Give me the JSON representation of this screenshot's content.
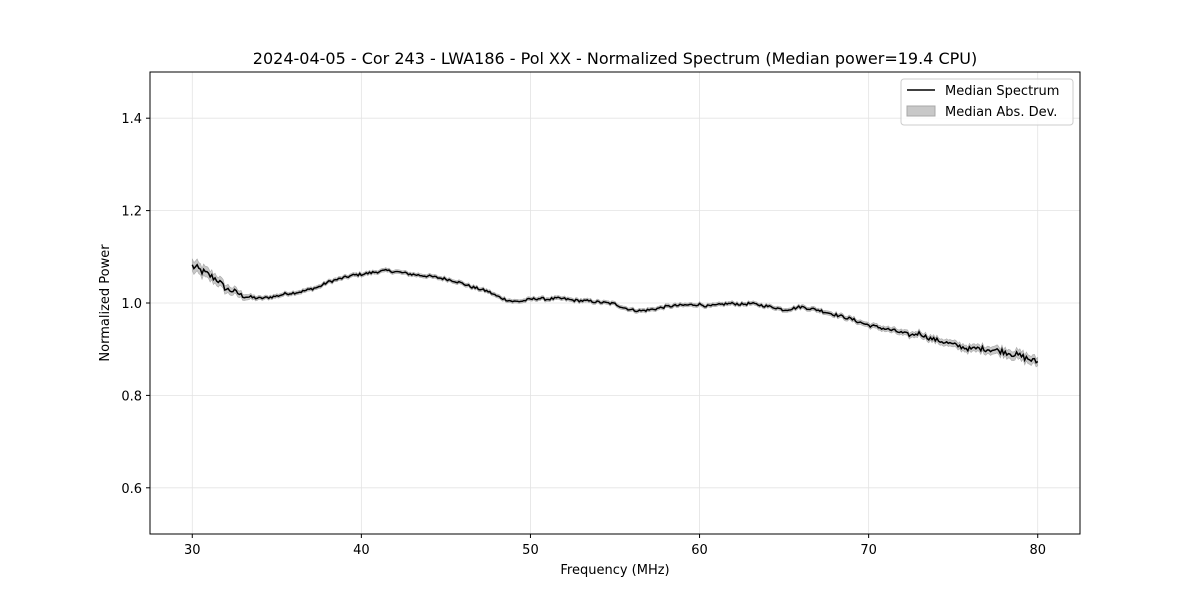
{
  "chart_data": {
    "type": "line",
    "title": "2024-04-05 - Cor 243 - LWA186 - Pol XX - Normalized Spectrum (Median power=19.4 CPU)",
    "xlabel": "Frequency (MHz)",
    "ylabel": "Normalized Power",
    "xlim": [
      27.5,
      82.5
    ],
    "ylim": [
      0.5,
      1.5
    ],
    "xticks": [
      30,
      40,
      50,
      60,
      70,
      80
    ],
    "yticks": [
      0.6,
      0.8,
      1.0,
      1.2,
      1.4
    ],
    "xtick_labels": [
      "30",
      "40",
      "50",
      "60",
      "70",
      "80"
    ],
    "ytick_labels": [
      "0.6",
      "0.8",
      "1.0",
      "1.2",
      "1.4"
    ],
    "grid": true,
    "legend_position": "top-right",
    "colors": {
      "line": "#000000",
      "band": "#c8c8c8"
    },
    "series": [
      {
        "name": "Median Spectrum",
        "kind": "line",
        "x": [
          30,
          30.5,
          31,
          31.5,
          32,
          32.5,
          33,
          33.5,
          34,
          34.5,
          35,
          35.5,
          36,
          36.5,
          37,
          37.5,
          38,
          38.5,
          39,
          39.5,
          40,
          40.5,
          41,
          41.5,
          42,
          42.5,
          43,
          43.5,
          44,
          44.5,
          45,
          45.5,
          46,
          46.5,
          47,
          47.5,
          48,
          48.5,
          49,
          49.5,
          50,
          50.5,
          51,
          51.5,
          52,
          52.5,
          53,
          53.5,
          54,
          54.5,
          55,
          55.5,
          56,
          56.5,
          57,
          57.5,
          58,
          58.5,
          59,
          59.5,
          60,
          60.5,
          61,
          61.5,
          62,
          62.5,
          63,
          63.5,
          64,
          64.5,
          65,
          65.5,
          66,
          66.5,
          67,
          67.5,
          68,
          68.5,
          69,
          69.5,
          70,
          70.5,
          71,
          71.5,
          72,
          72.5,
          73,
          73.5,
          74,
          74.5,
          75,
          75.5,
          76,
          76.5,
          77,
          77.5,
          78,
          78.5,
          79,
          79.5,
          80
        ],
        "y": [
          1.08,
          1.07,
          1.06,
          1.05,
          1.03,
          1.025,
          1.015,
          1.012,
          1.01,
          1.012,
          1.015,
          1.02,
          1.022,
          1.025,
          1.03,
          1.035,
          1.045,
          1.05,
          1.055,
          1.06,
          1.062,
          1.065,
          1.068,
          1.07,
          1.068,
          1.065,
          1.062,
          1.06,
          1.058,
          1.055,
          1.052,
          1.048,
          1.042,
          1.035,
          1.03,
          1.025,
          1.015,
          1.008,
          1.003,
          1.004,
          1.008,
          1.01,
          1.008,
          1.01,
          1.009,
          1.006,
          1.005,
          1.004,
          1.002,
          1.0,
          0.998,
          0.99,
          0.985,
          0.983,
          0.985,
          0.988,
          0.992,
          0.994,
          0.995,
          0.996,
          0.997,
          0.993,
          0.995,
          0.998,
          0.999,
          0.997,
          0.999,
          0.996,
          0.993,
          0.99,
          0.985,
          0.988,
          0.992,
          0.988,
          0.985,
          0.98,
          0.975,
          0.97,
          0.965,
          0.958,
          0.952,
          0.948,
          0.944,
          0.94,
          0.935,
          0.93,
          0.935,
          0.925,
          0.92,
          0.915,
          0.91,
          0.905,
          0.9,
          0.902,
          0.9,
          0.898,
          0.895,
          0.89,
          0.885,
          0.878,
          0.872
        ]
      },
      {
        "name": "Median Abs. Dev.",
        "kind": "band",
        "halfwidth_x": [
          30,
          32,
          34,
          36,
          40,
          45,
          50,
          55,
          60,
          65,
          70,
          73,
          75,
          77,
          79,
          80
        ],
        "halfwidth": [
          0.013,
          0.009,
          0.004,
          0.004,
          0.004,
          0.004,
          0.004,
          0.004,
          0.004,
          0.004,
          0.005,
          0.006,
          0.007,
          0.008,
          0.01,
          0.009
        ]
      }
    ]
  }
}
